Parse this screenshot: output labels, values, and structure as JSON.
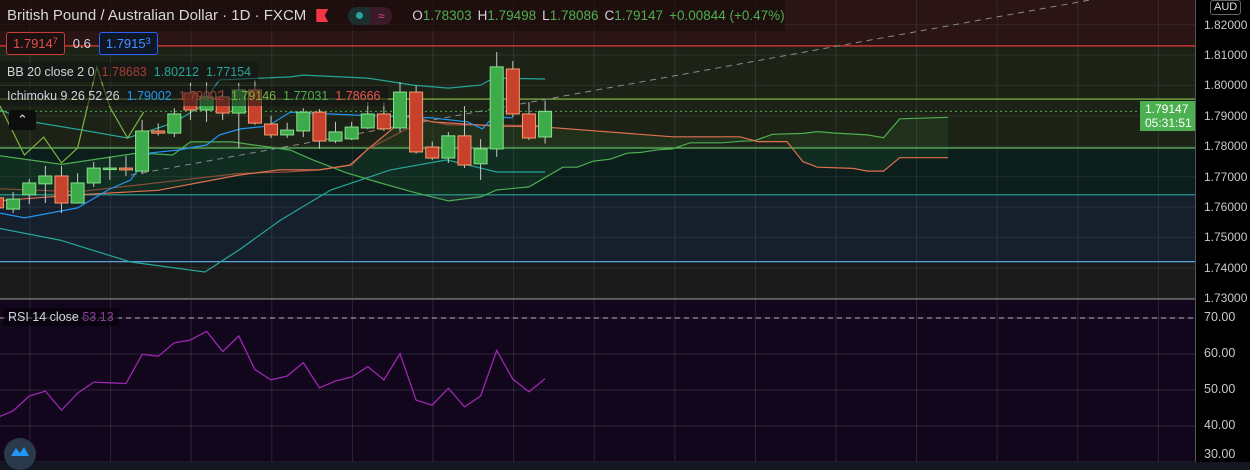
{
  "header": {
    "title": "British Pound / Australian Dollar · 1D · FXCM",
    "o_label": "O",
    "o": "1.78303",
    "h_label": "H",
    "h": "1.79498",
    "l_label": "L",
    "l": "1.78086",
    "c_label": "C",
    "c": "1.79147",
    "change": "+0.00844 (+0.47%)"
  },
  "trade": {
    "sell": "1.7914",
    "sell_sup": "7",
    "spread": "0.6",
    "buy": "1.7915",
    "buy_sup": "3"
  },
  "bb": {
    "name": "BB 20 close 2 0",
    "basis": "1.78683",
    "upper": "1.80212",
    "lower": "1.77154"
  },
  "ichimoku": {
    "name": "Ichimoku 9 26 52 26",
    "conversion": "1.79002",
    "base": "1.79002",
    "lagging": "1.79146",
    "span_a": "1.77031",
    "span_b": "1.78666"
  },
  "rsi": {
    "name": "RSI 14 close",
    "value": "53.13"
  },
  "axis": {
    "currency": "AUD",
    "last_price": "1.79147",
    "countdown": "05:31:51"
  },
  "colors": {
    "up": "#3dab4a",
    "down": "#c8412d",
    "bb_band": "#26a69a",
    "bb_basis": "#8d4a3c",
    "tenkan": "#2196f3",
    "span_a": "#4caf50",
    "span_b": "#e07050",
    "lagging": "#7cb342",
    "rsi": "#9c27b0"
  },
  "chart_data": [
    {
      "type": "candlestick",
      "title": "British Pound / Australian Dollar · 1D · FXCM",
      "ylim": [
        1.72,
        1.82
      ],
      "y_ticks": [
        "1.82000",
        "1.81000",
        "1.80000",
        "1.79000",
        "1.78000",
        "1.77000",
        "1.76000",
        "1.75000",
        "1.74000",
        "1.73000"
      ],
      "levels": [
        {
          "price": 1.813,
          "color": "#e53935"
        },
        {
          "price": 1.7955,
          "color": "#8bc34a"
        },
        {
          "price": 1.7794,
          "color": "#66bb6a"
        },
        {
          "price": 1.764,
          "color": "#26a69a"
        },
        {
          "price": 1.742,
          "color": "#64b5f6"
        }
      ],
      "trendline": [
        [
          8.3,
          1.7705
        ],
        [
          67.8,
          1.8281
        ]
      ],
      "ohlc": [
        [
          1.763,
          1.764,
          1.759,
          1.7597
        ],
        [
          1.7593,
          1.7649,
          1.758,
          1.7626
        ],
        [
          1.764,
          1.7692,
          1.761,
          1.7679
        ],
        [
          1.7676,
          1.7735,
          1.7613,
          1.7702
        ],
        [
          1.7702,
          1.7735,
          1.758,
          1.7613
        ],
        [
          1.7613,
          1.7711,
          1.7613,
          1.7679
        ],
        [
          1.7679,
          1.7748,
          1.7666,
          1.7728
        ],
        [
          1.7725,
          1.7765,
          1.7689,
          1.7728
        ],
        [
          1.7728,
          1.7768,
          1.7702,
          1.7722
        ],
        [
          1.7718,
          1.7886,
          1.7708,
          1.785
        ],
        [
          1.785,
          1.7875,
          1.7835,
          1.7843
        ],
        [
          1.7843,
          1.7925,
          1.783,
          1.7906
        ],
        [
          1.7975,
          1.8008,
          1.7886,
          1.7919
        ],
        [
          1.7919,
          1.801,
          1.788,
          1.7962
        ],
        [
          1.7962,
          1.7985,
          1.7886,
          1.7909
        ],
        [
          1.7909,
          1.8008,
          1.7794,
          1.7985
        ],
        [
          1.7985,
          1.8018,
          1.787,
          1.7876
        ],
        [
          1.7873,
          1.79,
          1.7827,
          1.7837
        ],
        [
          1.7837,
          1.7877,
          1.7827,
          1.7853
        ],
        [
          1.785,
          1.7925,
          1.783,
          1.7912
        ],
        [
          1.7912,
          1.7922,
          1.7791,
          1.7817
        ],
        [
          1.7817,
          1.788,
          1.781,
          1.7847
        ],
        [
          1.7824,
          1.788,
          1.782,
          1.7863
        ],
        [
          1.786,
          1.7945,
          1.7856,
          1.7906
        ],
        [
          1.7906,
          1.7945,
          1.785,
          1.7857
        ],
        [
          1.786,
          1.8011,
          1.7847,
          1.7978
        ],
        [
          1.7978,
          1.8,
          1.7775,
          1.7781
        ],
        [
          1.7797,
          1.7815,
          1.7755,
          1.7761
        ],
        [
          1.7761,
          1.7847,
          1.7745,
          1.7834
        ],
        [
          1.7834,
          1.7932,
          1.7728,
          1.7738
        ],
        [
          1.7742,
          1.7823,
          1.7689,
          1.7791
        ],
        [
          1.7791,
          1.811,
          1.7765,
          1.8061
        ],
        [
          1.8054,
          1.808,
          1.7896,
          1.7906
        ],
        [
          1.7906,
          1.7945,
          1.782,
          1.7827
        ],
        [
          1.78303,
          1.79498,
          1.78086,
          1.79147
        ]
      ],
      "series": {
        "bb_upper": [
          [
            0.2,
            1.7919
          ],
          [
            2.2,
            1.788
          ],
          [
            5.3,
            1.7853
          ],
          [
            8.1,
            1.7827
          ],
          [
            10.9,
            1.7876
          ],
          [
            12.6,
            1.7929
          ],
          [
            13.8,
            1.8018
          ],
          [
            18.2,
            1.8028
          ],
          [
            19,
            1.8034
          ],
          [
            23,
            1.8024
          ],
          [
            25.8,
            1.8001
          ],
          [
            28,
            1.7991
          ],
          [
            30,
            1.8001
          ],
          [
            30.8,
            1.8024
          ],
          [
            34,
            1.8021
          ]
        ],
        "bb_basis": [
          [
            0,
            1.766
          ],
          [
            5,
            1.765
          ],
          [
            10,
            1.768
          ],
          [
            15,
            1.771
          ],
          [
            18,
            1.7715
          ],
          [
            20,
            1.7722
          ],
          [
            22,
            1.7738
          ],
          [
            23,
            1.779
          ],
          [
            26.5,
            1.7886
          ],
          [
            28,
            1.787
          ],
          [
            34,
            1.7868
          ]
        ],
        "bb_lower": [
          [
            0,
            1.7531
          ],
          [
            3.9,
            1.7491
          ],
          [
            8.3,
            1.7419
          ],
          [
            12.9,
            1.7386
          ],
          [
            15,
            1.7458
          ],
          [
            17.6,
            1.7557
          ],
          [
            20.7,
            1.7656
          ],
          [
            24.4,
            1.7722
          ],
          [
            27.9,
            1.7755
          ],
          [
            30,
            1.7728
          ],
          [
            31,
            1.7715
          ],
          [
            34,
            1.7715
          ]
        ],
        "tenkan": [
          [
            0.2,
            1.758
          ],
          [
            1.7,
            1.7564
          ],
          [
            5,
            1.7597
          ],
          [
            7,
            1.7659
          ],
          [
            8.3,
            1.7689
          ],
          [
            9.5,
            1.7778
          ],
          [
            11.2,
            1.7787
          ],
          [
            13,
            1.7804
          ],
          [
            13.8,
            1.7837
          ],
          [
            15.1,
            1.7857
          ],
          [
            16.8,
            1.7866
          ],
          [
            18.2,
            1.7912
          ],
          [
            21.9,
            1.7903
          ],
          [
            27,
            1.7893
          ],
          [
            29.2,
            1.788
          ],
          [
            30.1,
            1.7857
          ],
          [
            30.8,
            1.7896
          ],
          [
            32,
            1.7893
          ]
        ],
        "lagging": [
          [
            0,
            1.7952
          ],
          [
            1.7,
            1.7771
          ],
          [
            2.9,
            1.783
          ],
          [
            4,
            1.7745
          ],
          [
            5,
            1.7794
          ],
          [
            6.2,
            1.806
          ],
          [
            7,
            1.7929
          ],
          [
            8.1,
            1.7827
          ],
          [
            9.1,
            1.7912
          ]
        ],
        "span_a": [
          [
            0,
            1.777
          ],
          [
            4,
            1.774
          ],
          [
            8.8,
            1.7778
          ],
          [
            10.9,
            1.7771
          ],
          [
            12,
            1.7814
          ],
          [
            14.6,
            1.7814
          ],
          [
            18.2,
            1.7787
          ],
          [
            19.6,
            1.7755
          ],
          [
            21.7,
            1.7712
          ],
          [
            23.8,
            1.7679
          ],
          [
            25.8,
            1.7649
          ],
          [
            28,
            1.762
          ],
          [
            30,
            1.7633
          ],
          [
            31,
            1.7656
          ],
          [
            33,
            1.7666
          ],
          [
            35.1,
            1.7731
          ],
          [
            36,
            1.7731
          ],
          [
            37,
            1.7751
          ],
          [
            38,
            1.7757
          ],
          [
            39.1,
            1.7777
          ],
          [
            40,
            1.778
          ],
          [
            41,
            1.7788
          ],
          [
            41.9,
            1.7791
          ],
          [
            43,
            1.7811
          ],
          [
            45,
            1.7811
          ],
          [
            46.1,
            1.7816
          ],
          [
            47,
            1.7818
          ],
          [
            48.1,
            1.7839
          ],
          [
            50,
            1.7842
          ],
          [
            50.9,
            1.7848
          ],
          [
            52,
            1.7843
          ],
          [
            54,
            1.7837
          ],
          [
            55,
            1.7828
          ],
          [
            56,
            1.789
          ],
          [
            59,
            1.7895
          ]
        ],
        "span_b": [
          [
            0,
            1.762
          ],
          [
            5,
            1.764
          ],
          [
            10,
            1.7655
          ],
          [
            15,
            1.7705
          ],
          [
            17.5,
            1.7722
          ],
          [
            20,
            1.7722
          ],
          [
            21.9,
            1.7738
          ],
          [
            23,
            1.779
          ],
          [
            25.5,
            1.79
          ],
          [
            27,
            1.788
          ],
          [
            31,
            1.7866
          ],
          [
            33.7,
            1.7864
          ],
          [
            41.9,
            1.7831
          ],
          [
            46.1,
            1.7831
          ],
          [
            47.2,
            1.7815
          ],
          [
            49,
            1.7815
          ],
          [
            50,
            1.7749
          ],
          [
            50.9,
            1.7731
          ],
          [
            53.1,
            1.7727
          ],
          [
            54,
            1.7718
          ],
          [
            55,
            1.7718
          ],
          [
            56,
            1.7762
          ],
          [
            59,
            1.7762
          ]
        ]
      }
    },
    {
      "type": "line",
      "title": "RSI 14 close",
      "ylim": [
        30,
        75
      ],
      "y_ticks": [
        "70.00",
        "60.00",
        "50.00",
        "40.00",
        "30.00"
      ],
      "overbought": 70,
      "values": [
        42.3,
        44.2,
        48.3,
        49.7,
        44.4,
        49.1,
        52.2,
        52.0,
        51.8,
        59.9,
        59.4,
        63.1,
        63.9,
        66.3,
        60.7,
        65.0,
        55.7,
        52.8,
        53.9,
        57.6,
        50.6,
        52.5,
        53.6,
        56.5,
        52.8,
        60.1,
        47.2,
        45.8,
        50.5,
        45.3,
        48.3,
        61.0,
        53.0,
        49.5,
        53.13
      ]
    }
  ]
}
